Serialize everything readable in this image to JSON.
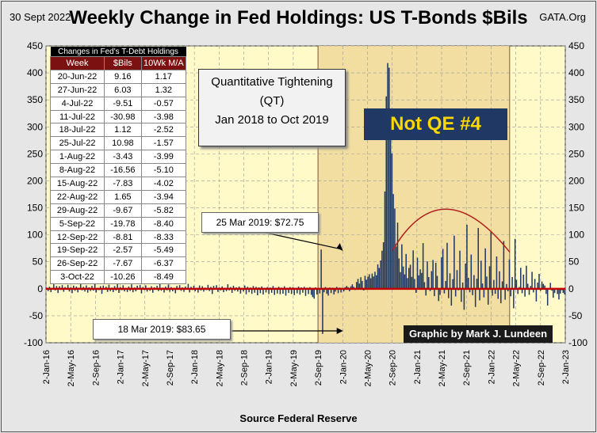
{
  "header": {
    "date": "30 Sept 2022",
    "title": "Weekly Change in Fed Holdings: US T-Bonds $Bils",
    "org": "GATA.Org"
  },
  "source": "Source  Federal Reserve",
  "qt_box": {
    "line1": "Quantitative Tightening",
    "line2": "(QT)",
    "line3": "Jan 2018 to Oct 2019"
  },
  "qe_box": "Not QE #4",
  "byline": "Graphic by Mark J. Lundeen",
  "annotations": {
    "mar25": "25 Mar 2019:  $72.75",
    "mar18": "18 Mar 2019:  $83.65"
  },
  "table": {
    "caption": "Changes in Fed's T-Debt Holdings",
    "headers": [
      "Week",
      "$Bils",
      "10Wk M/A"
    ],
    "rows": [
      [
        "20-Jun-22",
        "9.16",
        "1.17"
      ],
      [
        "27-Jun-22",
        "6.03",
        "1.32"
      ],
      [
        "4-Jul-22",
        "-9.51",
        "-0.57"
      ],
      [
        "11-Jul-22",
        "-30.98",
        "-3.98"
      ],
      [
        "18-Jul-22",
        "1.12",
        "-2.52"
      ],
      [
        "25-Jul-22",
        "10.98",
        "-1.57"
      ],
      [
        "1-Aug-22",
        "-3.43",
        "-3.99"
      ],
      [
        "8-Aug-22",
        "-16.56",
        "-5.10"
      ],
      [
        "15-Aug-22",
        "-7.83",
        "-4.02"
      ],
      [
        "22-Aug-22",
        "1.65",
        "-3.94"
      ],
      [
        "29-Aug-22",
        "-9.67",
        "-5.82"
      ],
      [
        "5-Sep-22",
        "-19.78",
        "-8.40"
      ],
      [
        "12-Sep-22",
        "-8.81",
        "-8.33"
      ],
      [
        "19-Sep-22",
        "-2.57",
        "-5.49"
      ],
      [
        "26-Sep-22",
        "-7.67",
        "-6.37"
      ],
      [
        "3-Oct-22",
        "-10.26",
        "-8.49"
      ]
    ]
  },
  "colors": {
    "plot_bg": "#fffac8",
    "shade": "#f1dea0",
    "bar": "#1f3864",
    "zero_line": "#c00000",
    "arc": "#b02020",
    "vline": "#7a5c3a"
  },
  "chart_data": {
    "type": "bar",
    "title": "Weekly Change in Fed Holdings: US T-Bonds $Bils",
    "xlabel": "Source  Federal Reserve",
    "ylabel": "",
    "ylim": [
      -100,
      450
    ],
    "yticks": [
      450,
      400,
      350,
      300,
      250,
      200,
      150,
      100,
      50,
      0,
      -50,
      -100
    ],
    "x_start": "2-Jan-16",
    "x_end": "2-Jan-23",
    "x_ticks": [
      "2-Jan-16",
      "2-May-16",
      "2-Sep-16",
      "2-Jan-17",
      "2-May-17",
      "2-Sep-17",
      "2-Jan-18",
      "2-May-18",
      "2-Sep-18",
      "2-Jan-19",
      "2-May-19",
      "2-Sep-19",
      "2-Jan-20",
      "2-May-20",
      "2-Sep-20",
      "2-Jan-21",
      "2-May-21",
      "2-Sep-21",
      "2-Jan-22",
      "2-May-22",
      "2-Sep-22",
      "2-Jan-23"
    ],
    "qt_period": [
      "2018-01",
      "2019-10"
    ],
    "shaded_period": [
      "2019-09",
      "2022-04"
    ],
    "arc_peak_date": "2021-05",
    "arc_peak_value": 148,
    "series": [
      {
        "name": "Weekly Change",
        "values": [
          2.1,
          -4.3,
          3.8,
          -6.2,
          1.5,
          8.4,
          -3.1,
          5.2,
          -7.8,
          4.6,
          -2.2,
          6.9,
          -5.5,
          3.3,
          -1.8,
          7.4,
          -4.9,
          2.6,
          -8.1,
          5.9,
          -3.7,
          4.2,
          -6.6,
          1.9,
          9.8,
          -2.9,
          3.6,
          -5.1,
          6.3,
          -7.2,
          2.8,
          -4.1,
          5.5,
          -3.4,
          8.7,
          -6.8,
          1.4,
          -2.5,
          4.9,
          -9.3,
          6.1,
          -1.2,
          3.9,
          -5.7,
          7.6,
          -4.4,
          2.3,
          -6.1,
          5.1,
          -3.2,
          12.4,
          -7.5,
          3.1,
          -2.7,
          6.6,
          -4.8,
          1.7,
          -5.9,
          4.4,
          -3.9,
          8.2,
          -6.4,
          2.4,
          -4.7,
          5.8,
          -1.6,
          7.1,
          -8.6,
          3.4,
          -2.3,
          6.4,
          -5.2,
          1.8,
          -3.6,
          4.7,
          -7.3,
          2.9,
          -1.9,
          5.6,
          -4.2,
          14.8,
          -3.5,
          2.2,
          -6.9,
          4.1,
          -2.8,
          7.9,
          -5.4,
          3.2,
          -4.6,
          1.6,
          -8.3,
          5.3,
          -2.1,
          6.8,
          -3.8,
          2.7,
          -5.6,
          4.3,
          -1.4,
          9.2,
          -6.7,
          3.7,
          -2.4,
          5.7,
          -4.5,
          1.3,
          -7.1,
          6.2,
          -3.3,
          4.8,
          -5.3,
          2.1,
          -2.6,
          7.3,
          -4.1,
          3.5,
          -9.7,
          5.4,
          -1.7,
          6.7,
          -5.8,
          2.5,
          -3.1,
          4.5,
          -6.3,
          1.9,
          -4.4,
          8.4,
          -2.9,
          3.3,
          -7.6,
          5.6,
          -3.7,
          2.6,
          -5.1,
          4.2,
          -8.8,
          1.5,
          -4.9,
          6.1,
          -10.2,
          3.8,
          -6.5,
          2.4,
          -9.4,
          5.1,
          -7.2,
          3.6,
          -12.1,
          2.7,
          -8.1,
          4.4,
          -10.6,
          1.8,
          -6.8,
          3.2,
          -9.9,
          2.3,
          -7.5,
          5.2,
          -11.4,
          1.6,
          -8.7,
          3.9,
          -10.1,
          2.2,
          -9.1,
          4.6,
          -12.8,
          1.9,
          -7.8,
          3.4,
          -9.6,
          2.8,
          -11.7,
          1.7,
          -8.4,
          4.1,
          -10.9,
          2.5,
          -7.3,
          3.7,
          -13.2,
          2.1,
          -9.8,
          3.1,
          -11.2,
          -15.4,
          -18.3,
          2.6,
          -10.4,
          1.4,
          -8.6,
          72.75,
          -83.65,
          -6.4,
          3.3,
          -9.2,
          -12.7,
          2.4,
          -7.9,
          1.8,
          -10.6,
          -5.3,
          3.6,
          -8.1,
          2.2,
          -6.9,
          1.5,
          -4.8,
          2.9,
          5.3,
          3.1,
          -4.6,
          4.6,
          8.2,
          3.7,
          -2.3,
          12.6,
          18.4,
          9.7,
          21.3,
          14.6,
          -3.2,
          24.1,
          16.8,
          22.5,
          26.9,
          19.4,
          28.2,
          22.8,
          31.6,
          25.1,
          45.3,
          38.6,
          52.4,
          70.5,
          86.2,
          180.3,
          356.5,
          418.2,
          409.6,
          310.4,
          250.8,
          175.5,
          148.7,
          78.4,
          122.6,
          56.2,
          30.8,
          82.4,
          41.3,
          26.7,
          64.5,
          19.8,
          38.7,
          44.6,
          22.1,
          71.2,
          18.3,
          -7.4,
          57.6,
          24.9,
          36.1,
          29.4,
          84.6,
          12.3,
          -12.5,
          50.8,
          21.7,
          -4.2,
          32.6,
          53.4,
          -13.6,
          48.1,
          23.8,
          -22.7,
          -11.3,
          58.2,
          73.9,
          -8.6,
          14.5,
          85.1,
          -17.4,
          28.6,
          -31.2,
          17.9,
          98.4,
          -14.2,
          34.7,
          -2.8,
          70.6,
          -24.3,
          11.6,
          -38.9,
          46.8,
          118.7,
          20.4,
          -6.5,
          63.4,
          -11.8,
          25.3,
          -33.7,
          18.6,
          112.6,
          -21.5,
          52.1,
          9.8,
          -15.9,
          74.8,
          22.6,
          -29.4,
          41.7,
          105.3,
          -12.7,
          16.4,
          -9.3,
          59.8,
          -18.6,
          32.5,
          -26.8,
          13.7,
          88.4,
          -20.2,
          8.9,
          -4.7,
          54.3,
          -13.9,
          21.8,
          -36.2,
          92.6,
          16.7,
          -9.6,
          3.4,
          38.9,
          -8.2,
          26.3,
          -14.5,
          42.8,
          9.4,
          -11.2,
          5.1,
          31.4,
          -6.7,
          18.2,
          -23.4,
          11.5,
          27.6,
          -3.8,
          13.4,
          9.16,
          6.03,
          -9.51,
          -30.98,
          1.12,
          10.98,
          -3.43,
          -16.56,
          -7.83,
          1.65,
          -9.67,
          -19.78,
          -8.81,
          -2.57,
          -7.67,
          -10.26
        ]
      }
    ],
    "annotations": [
      "25 Mar 2019:  $72.75",
      "18 Mar 2019:  $83.65"
    ]
  }
}
